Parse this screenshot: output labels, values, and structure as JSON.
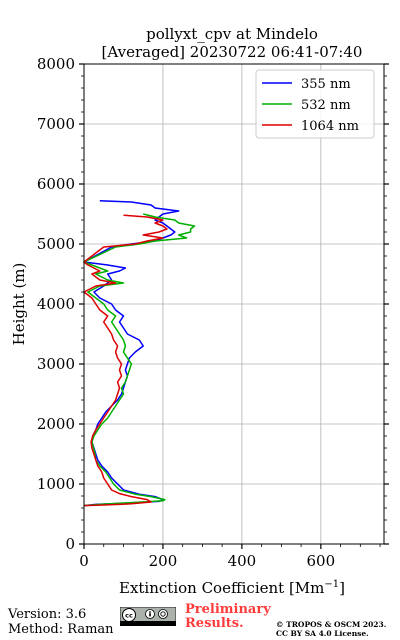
{
  "chart_data": {
    "type": "line",
    "title_line1": "pollyxt_cpv at Mindelo",
    "title_line2": "[Averaged] 20230722 06:41-07:40",
    "xlabel": "Extinction Coefficient [Mm",
    "xlabel_exp": "−1",
    "xlabel_end": "]",
    "ylabel": "Height (m)",
    "xlim": [
      0,
      760
    ],
    "ylim": [
      0,
      8000
    ],
    "xticks": [
      "0",
      "200",
      "400",
      "600"
    ],
    "xtick_values": [
      0,
      200,
      400,
      600
    ],
    "yticks": [
      "0",
      "1000",
      "2000",
      "3000",
      "4000",
      "5000",
      "6000",
      "7000",
      "8000"
    ],
    "ytick_values": [
      0,
      1000,
      2000,
      3000,
      4000,
      5000,
      6000,
      7000,
      8000
    ],
    "grid": true,
    "legend_position": "top-right",
    "series": [
      {
        "name": "355 nm",
        "color": "#0000ff",
        "points": [
          [
            0,
            640
          ],
          [
            30,
            660
          ],
          [
            100,
            680
          ],
          [
            190,
            710
          ],
          [
            200,
            740
          ],
          [
            180,
            790
          ],
          [
            140,
            830
          ],
          [
            100,
            900
          ],
          [
            85,
            1000
          ],
          [
            70,
            1100
          ],
          [
            60,
            1200
          ],
          [
            45,
            1300
          ],
          [
            35,
            1400
          ],
          [
            30,
            1500
          ],
          [
            25,
            1600
          ],
          [
            20,
            1700
          ],
          [
            22,
            1800
          ],
          [
            30,
            1900
          ],
          [
            35,
            2000
          ],
          [
            45,
            2100
          ],
          [
            55,
            2200
          ],
          [
            70,
            2300
          ],
          [
            85,
            2400
          ],
          [
            95,
            2500
          ],
          [
            100,
            2600
          ],
          [
            105,
            2700
          ],
          [
            110,
            2800
          ],
          [
            105,
            2900
          ],
          [
            110,
            3000
          ],
          [
            115,
            3100
          ],
          [
            130,
            3200
          ],
          [
            150,
            3300
          ],
          [
            140,
            3400
          ],
          [
            110,
            3500
          ],
          [
            100,
            3600
          ],
          [
            90,
            3700
          ],
          [
            100,
            3800
          ],
          [
            80,
            3900
          ],
          [
            70,
            4000
          ],
          [
            40,
            4100
          ],
          [
            25,
            4200
          ],
          [
            50,
            4300
          ],
          [
            70,
            4400
          ],
          [
            60,
            4500
          ],
          [
            90,
            4550
          ],
          [
            105,
            4600
          ],
          [
            60,
            4650
          ],
          [
            0,
            4700
          ],
          [
            70,
            4950
          ],
          [
            120,
            5000
          ],
          [
            180,
            5050
          ],
          [
            200,
            5100
          ],
          [
            220,
            5150
          ],
          [
            230,
            5200
          ],
          [
            220,
            5250
          ],
          [
            210,
            5300
          ],
          [
            200,
            5350
          ],
          [
            180,
            5400
          ],
          [
            190,
            5450
          ],
          [
            200,
            5500
          ],
          [
            240,
            5550
          ],
          [
            180,
            5600
          ],
          [
            170,
            5650
          ],
          [
            120,
            5700
          ],
          [
            40,
            5720
          ]
        ]
      },
      {
        "name": "532 nm",
        "color": "#00b000",
        "points": [
          [
            0,
            640
          ],
          [
            40,
            660
          ],
          [
            120,
            690
          ],
          [
            200,
            720
          ],
          [
            205,
            740
          ],
          [
            170,
            790
          ],
          [
            130,
            830
          ],
          [
            90,
            900
          ],
          [
            75,
            1000
          ],
          [
            65,
            1100
          ],
          [
            55,
            1200
          ],
          [
            40,
            1300
          ],
          [
            30,
            1400
          ],
          [
            28,
            1500
          ],
          [
            24,
            1600
          ],
          [
            20,
            1700
          ],
          [
            25,
            1800
          ],
          [
            35,
            1900
          ],
          [
            45,
            2000
          ],
          [
            60,
            2100
          ],
          [
            70,
            2200
          ],
          [
            80,
            2300
          ],
          [
            90,
            2400
          ],
          [
            100,
            2500
          ],
          [
            95,
            2600
          ],
          [
            105,
            2700
          ],
          [
            110,
            2800
          ],
          [
            115,
            2900
          ],
          [
            120,
            3000
          ],
          [
            110,
            3100
          ],
          [
            100,
            3200
          ],
          [
            105,
            3300
          ],
          [
            100,
            3400
          ],
          [
            90,
            3500
          ],
          [
            80,
            3600
          ],
          [
            70,
            3700
          ],
          [
            80,
            3800
          ],
          [
            60,
            3900
          ],
          [
            50,
            4000
          ],
          [
            30,
            4100
          ],
          [
            10,
            4200
          ],
          [
            40,
            4300
          ],
          [
            100,
            4350
          ],
          [
            60,
            4400
          ],
          [
            30,
            4500
          ],
          [
            60,
            4550
          ],
          [
            40,
            4600
          ],
          [
            0,
            4700
          ],
          [
            80,
            4950
          ],
          [
            140,
            5000
          ],
          [
            180,
            5050
          ],
          [
            260,
            5100
          ],
          [
            240,
            5150
          ],
          [
            270,
            5200
          ],
          [
            270,
            5250
          ],
          [
            280,
            5300
          ],
          [
            240,
            5350
          ],
          [
            230,
            5400
          ],
          [
            180,
            5450
          ],
          [
            150,
            5500
          ]
        ]
      },
      {
        "name": "1064 nm",
        "color": "#dd0000",
        "points": [
          [
            0,
            640
          ],
          [
            50,
            650
          ],
          [
            120,
            670
          ],
          [
            170,
            700
          ],
          [
            160,
            740
          ],
          [
            120,
            790
          ],
          [
            90,
            840
          ],
          [
            70,
            900
          ],
          [
            60,
            1000
          ],
          [
            50,
            1100
          ],
          [
            45,
            1200
          ],
          [
            35,
            1300
          ],
          [
            30,
            1400
          ],
          [
            25,
            1500
          ],
          [
            20,
            1600
          ],
          [
            18,
            1700
          ],
          [
            22,
            1800
          ],
          [
            30,
            1900
          ],
          [
            40,
            2000
          ],
          [
            50,
            2100
          ],
          [
            60,
            2200
          ],
          [
            70,
            2300
          ],
          [
            80,
            2400
          ],
          [
            85,
            2500
          ],
          [
            90,
            2600
          ],
          [
            85,
            2700
          ],
          [
            95,
            2800
          ],
          [
            90,
            2900
          ],
          [
            95,
            3000
          ],
          [
            85,
            3100
          ],
          [
            80,
            3200
          ],
          [
            85,
            3300
          ],
          [
            75,
            3400
          ],
          [
            70,
            3500
          ],
          [
            60,
            3600
          ],
          [
            50,
            3700
          ],
          [
            60,
            3800
          ],
          [
            40,
            3900
          ],
          [
            30,
            4000
          ],
          [
            20,
            4100
          ],
          [
            0,
            4200
          ],
          [
            30,
            4300
          ],
          [
            80,
            4350
          ],
          [
            40,
            4400
          ],
          [
            20,
            4500
          ],
          [
            40,
            4550
          ],
          [
            10,
            4650
          ],
          [
            0,
            4700
          ],
          [
            50,
            4950
          ],
          [
            130,
            5000
          ],
          [
            160,
            5050
          ],
          [
            200,
            5100
          ],
          [
            150,
            5150
          ],
          [
            190,
            5200
          ],
          [
            210,
            5250
          ],
          [
            200,
            5300
          ],
          [
            180,
            5350
          ],
          [
            200,
            5400
          ],
          [
            160,
            5450
          ],
          [
            100,
            5480
          ]
        ]
      }
    ]
  },
  "footer": {
    "version": "Version: 3.6",
    "method": "Method: Raman",
    "preliminary_line1": "Preliminary",
    "preliminary_line2": "Results.",
    "copyright_line1": "© TROPOS & OSCM 2023.",
    "copyright_line2": "CC BY SA 4.0 License.",
    "badge_text": "cc"
  }
}
